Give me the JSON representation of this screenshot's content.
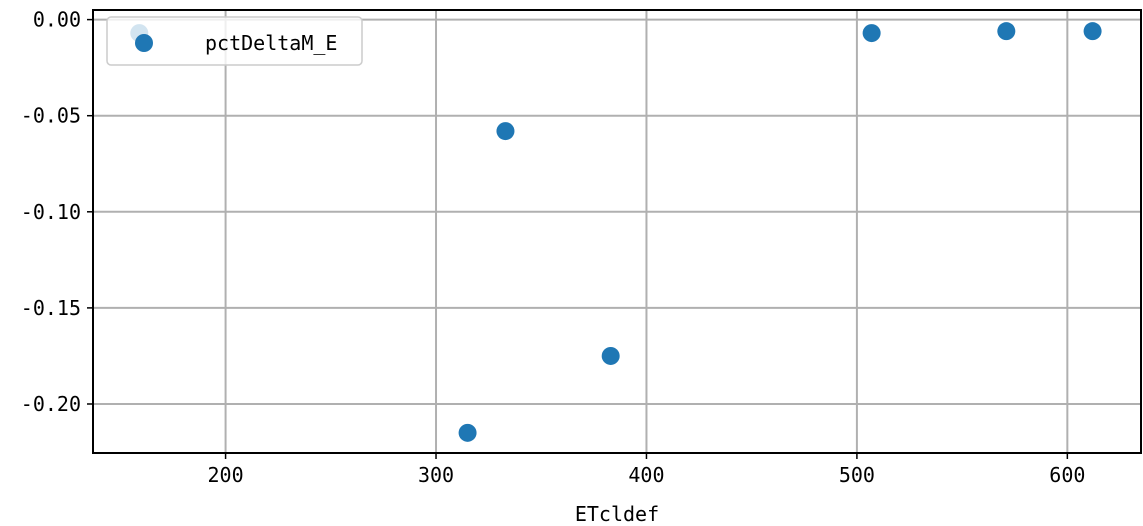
{
  "chart_data": {
    "type": "scatter",
    "title": "",
    "xlabel": "ETcldef",
    "ylabel": "",
    "xlim": [
      137,
      635
    ],
    "ylim": [
      -0.2255,
      0.005
    ],
    "xticks": [
      200,
      300,
      400,
      500,
      600
    ],
    "yticks": [
      0.0,
      -0.05,
      -0.1,
      -0.15,
      -0.2
    ],
    "xtick_labels": [
      "200",
      "300",
      "400",
      "500",
      "600"
    ],
    "ytick_labels": [
      "0.00",
      "-0.05",
      "-0.10",
      "-0.15",
      "-0.20"
    ],
    "grid": true,
    "legend": {
      "position": "top-left"
    },
    "series": [
      {
        "name": "pctDeltaM_E",
        "color": "#1f77b4",
        "points": [
          {
            "x": 159,
            "y": -0.007
          },
          {
            "x": 315,
            "y": -0.215
          },
          {
            "x": 333,
            "y": -0.058
          },
          {
            "x": 383,
            "y": -0.175
          },
          {
            "x": 507,
            "y": -0.007
          },
          {
            "x": 571,
            "y": -0.006
          },
          {
            "x": 612,
            "y": -0.006
          }
        ]
      }
    ]
  }
}
